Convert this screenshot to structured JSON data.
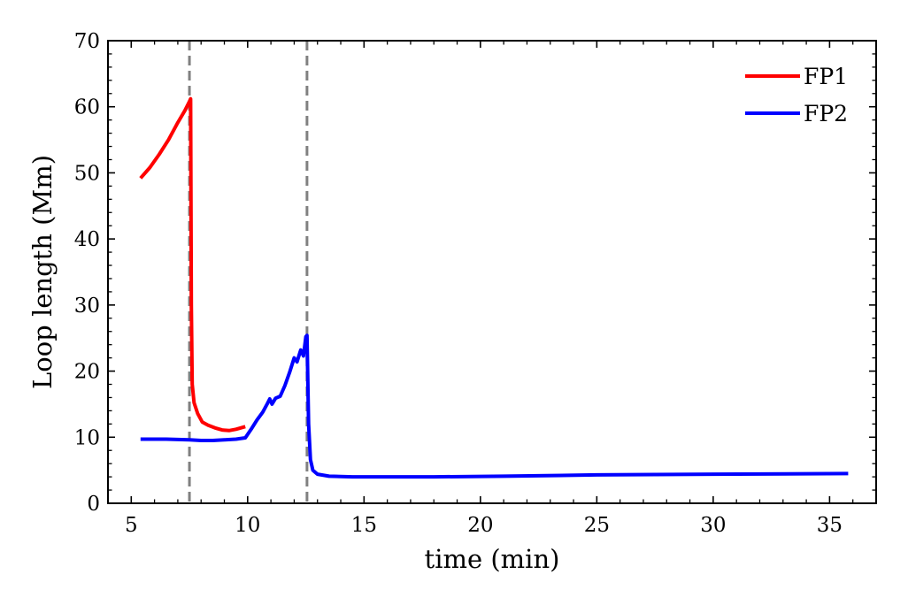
{
  "chart_data": {
    "type": "line",
    "title": "",
    "xlabel": "time (min)",
    "ylabel": "Loop length (Mm)",
    "xlim": [
      4,
      37
    ],
    "ylim": [
      0,
      70
    ],
    "xticks": [
      5,
      10,
      15,
      20,
      25,
      30,
      35
    ],
    "yticks": [
      0,
      10,
      20,
      30,
      40,
      50,
      60,
      70
    ],
    "grid": false,
    "legend": {
      "position": "top-right"
    },
    "vlines": [
      {
        "x": 7.5,
        "color": "#808080",
        "style": "dashed"
      },
      {
        "x": 12.55,
        "color": "#808080",
        "style": "dashed"
      }
    ],
    "series": [
      {
        "name": "FP1",
        "color": "#ff0000",
        "points": [
          [
            5.4,
            49.2
          ],
          [
            5.8,
            50.8
          ],
          [
            6.2,
            52.8
          ],
          [
            6.6,
            55.0
          ],
          [
            7.0,
            57.6
          ],
          [
            7.3,
            59.4
          ],
          [
            7.5,
            60.8
          ],
          [
            7.55,
            61.2
          ],
          [
            7.58,
            30.0
          ],
          [
            7.62,
            18.0
          ],
          [
            7.7,
            15.2
          ],
          [
            7.85,
            13.6
          ],
          [
            8.05,
            12.3
          ],
          [
            8.3,
            11.8
          ],
          [
            8.6,
            11.4
          ],
          [
            8.9,
            11.1
          ],
          [
            9.2,
            11.0
          ],
          [
            9.5,
            11.2
          ],
          [
            9.9,
            11.6
          ]
        ]
      },
      {
        "name": "FP2",
        "color": "#0000ff",
        "points": [
          [
            5.4,
            9.7
          ],
          [
            6.5,
            9.7
          ],
          [
            7.5,
            9.6
          ],
          [
            8.0,
            9.5
          ],
          [
            8.5,
            9.5
          ],
          [
            9.0,
            9.6
          ],
          [
            9.5,
            9.7
          ],
          [
            9.9,
            9.9
          ],
          [
            10.15,
            11.2
          ],
          [
            10.4,
            12.6
          ],
          [
            10.65,
            13.8
          ],
          [
            10.85,
            15.1
          ],
          [
            10.95,
            15.8
          ],
          [
            11.05,
            15.0
          ],
          [
            11.2,
            15.9
          ],
          [
            11.4,
            16.2
          ],
          [
            11.6,
            17.8
          ],
          [
            11.8,
            19.8
          ],
          [
            12.0,
            22.0
          ],
          [
            12.12,
            21.4
          ],
          [
            12.28,
            23.2
          ],
          [
            12.4,
            22.3
          ],
          [
            12.5,
            25.2
          ],
          [
            12.55,
            25.4
          ],
          [
            12.62,
            12.0
          ],
          [
            12.7,
            6.6
          ],
          [
            12.8,
            5.0
          ],
          [
            13.0,
            4.4
          ],
          [
            13.5,
            4.1
          ],
          [
            14.5,
            4.0
          ],
          [
            18.0,
            4.0
          ],
          [
            21.0,
            4.1
          ],
          [
            25.0,
            4.3
          ],
          [
            30.0,
            4.4
          ],
          [
            35.8,
            4.5
          ]
        ]
      }
    ]
  }
}
